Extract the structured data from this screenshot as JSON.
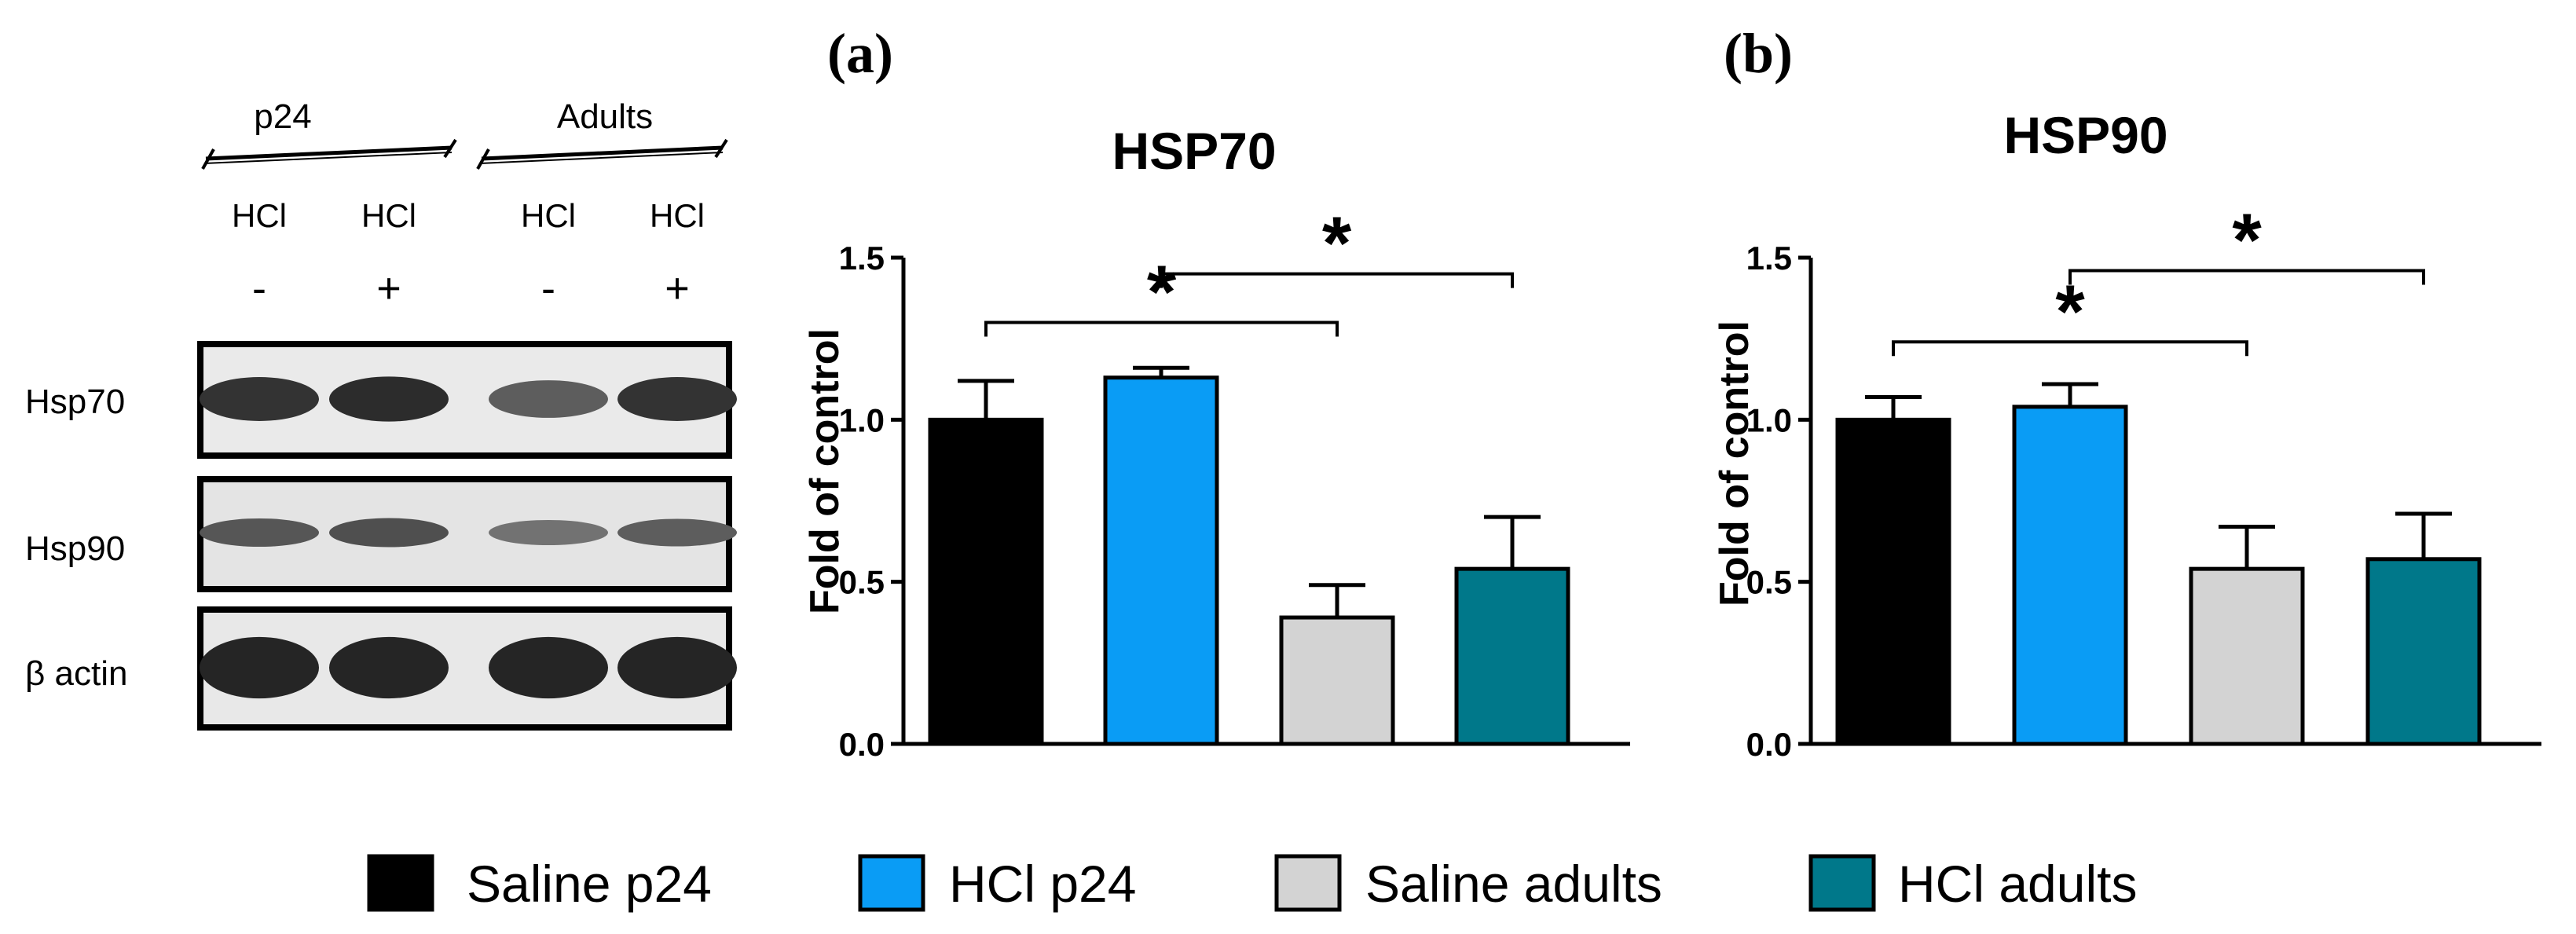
{
  "blot": {
    "groups": [
      "p24",
      "Adults"
    ],
    "treatment_labels": [
      "HCl",
      "HCl",
      "HCl",
      "HCl"
    ],
    "treatment_signs": [
      "-",
      "+",
      "-",
      "+"
    ],
    "rows": [
      {
        "label": "Hsp70",
        "band_intensity": [
          0.85,
          0.9,
          0.55,
          0.85
        ]
      },
      {
        "label": "Hsp90",
        "band_intensity": [
          0.6,
          0.65,
          0.4,
          0.55
        ]
      },
      {
        "label": "β actin",
        "band_intensity": [
          0.95,
          0.95,
          0.95,
          0.95
        ]
      }
    ]
  },
  "legend": [
    {
      "label": "Saline p24",
      "color": "#000000"
    },
    {
      "label": "HCl p24",
      "color": "#0a9cf5"
    },
    {
      "label": "Saline adults",
      "color": "#d3d3d3"
    },
    {
      "label": "HCl adults",
      "color": "#00788a"
    }
  ],
  "chart_data": [
    {
      "type": "bar",
      "panel": "(a)",
      "title": "HSP70",
      "xlabel": "",
      "ylabel": "Fold of control",
      "ylim": [
        0,
        1.5
      ],
      "yticks": [
        "0.0",
        "0.5",
        "1.0",
        "1.5"
      ],
      "categories": [
        "Saline p24",
        "HCl p24",
        "Saline adults",
        "HCl adults"
      ],
      "values": [
        1.0,
        1.13,
        0.39,
        0.54
      ],
      "errors": [
        0.12,
        0.03,
        0.1,
        0.16
      ],
      "significance": [
        {
          "from": 0,
          "to": 2,
          "level": 1.3,
          "label": "*"
        },
        {
          "from": 1,
          "to": 3,
          "level": 1.45,
          "label": "*"
        }
      ]
    },
    {
      "type": "bar",
      "panel": "(b)",
      "title": "HSP90",
      "xlabel": "",
      "ylabel": "Fold of control",
      "ylim": [
        0,
        1.5
      ],
      "yticks": [
        "0.0",
        "0.5",
        "1.0",
        "1.5"
      ],
      "categories": [
        "Saline p24",
        "HCl p24",
        "Saline adults",
        "HCl adults"
      ],
      "values": [
        1.0,
        1.04,
        0.54,
        0.57
      ],
      "errors": [
        0.07,
        0.07,
        0.13,
        0.14
      ],
      "significance": [
        {
          "from": 0,
          "to": 2,
          "level": 1.24,
          "label": "*"
        },
        {
          "from": 1,
          "to": 3,
          "level": 1.46,
          "label": "*"
        }
      ]
    }
  ]
}
